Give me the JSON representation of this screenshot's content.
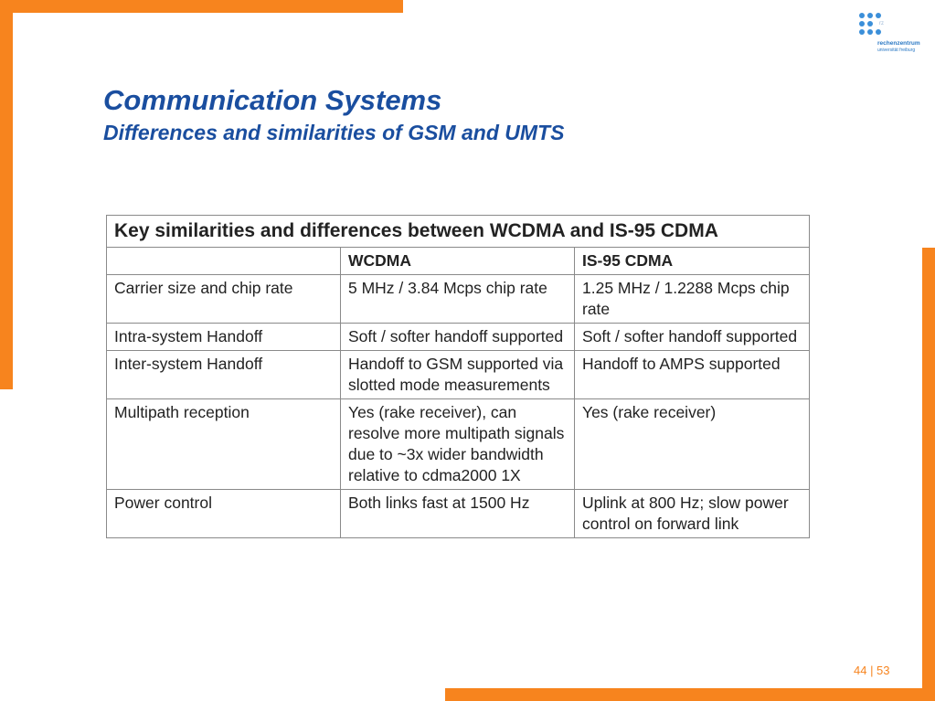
{
  "slide": {
    "title": "Communication Systems",
    "subtitle": "Differences and similarities of GSM  and UMTS",
    "page_number": "44 | 53"
  },
  "logo": {
    "abbrev": "rz",
    "name_line1": "rechenzentrum",
    "name_line2": "universität freiburg"
  },
  "colors": {
    "accent_orange": "#f7841e",
    "title_blue": "#1a4e9f",
    "logo_blue": "#3b8fd9"
  },
  "table": {
    "caption": "Key similarities and differences between WCDMA and IS-95 CDMA",
    "headers": [
      "",
      "WCDMA",
      "IS-95 CDMA"
    ],
    "rows": [
      [
        "Carrier size and chip rate",
        "5 MHz / 3.84 Mcps chip rate",
        "1.25 MHz / 1.2288 Mcps chip rate"
      ],
      [
        "Intra-system Handoff",
        "Soft / softer handoff supported",
        "Soft / softer handoff supported"
      ],
      [
        "Inter-system Handoff",
        "Handoff to GSM supported via slotted mode measurements",
        "Handoff to AMPS supported"
      ],
      [
        "Multipath reception",
        "Yes (rake receiver), can resolve more multipath signals due to ~3x wider bandwidth relative to cdma2000 1X",
        "Yes (rake receiver)"
      ],
      [
        "Power control",
        "Both links fast at 1500 Hz",
        "Uplink at 800 Hz; slow power control on forward link"
      ]
    ]
  }
}
